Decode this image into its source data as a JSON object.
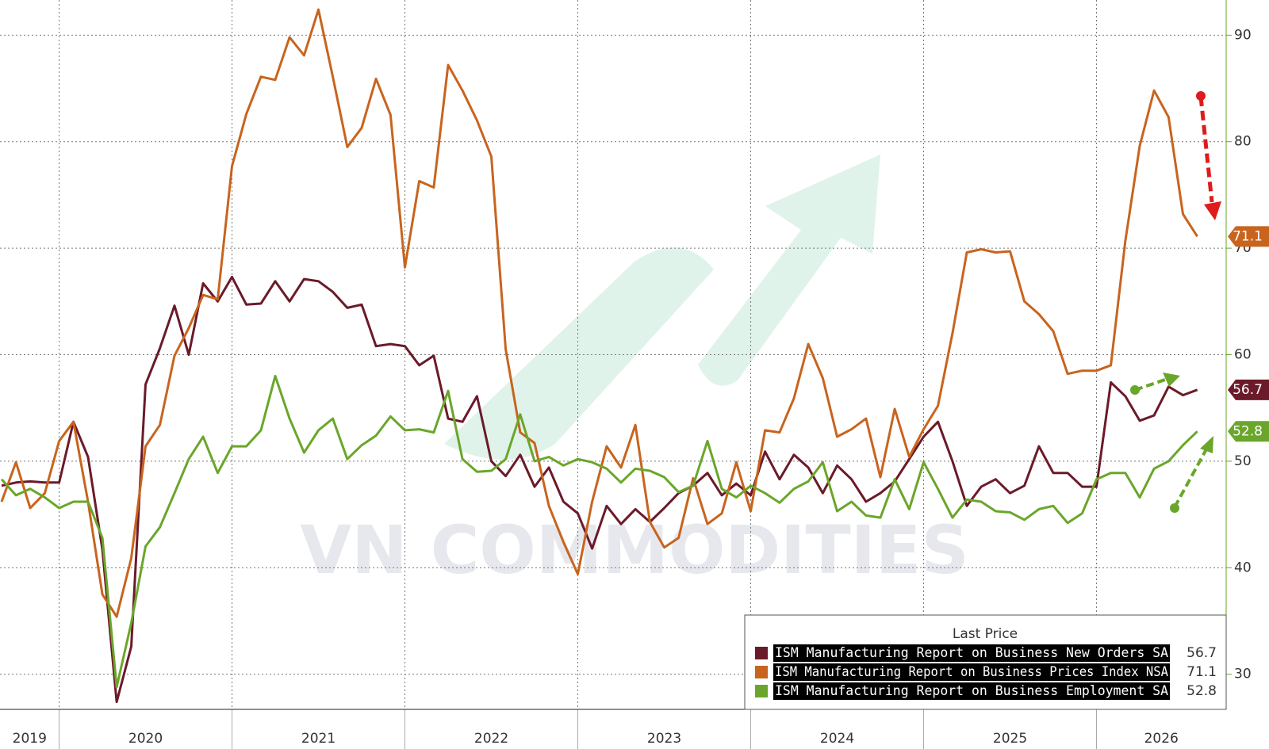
{
  "chart_data": {
    "type": "line",
    "watermark": "VN COMMODITIES",
    "legend_title": "Last Price",
    "x": [
      2019.667,
      2019.75,
      2019.833,
      2019.917,
      2020,
      2020.083,
      2020.167,
      2020.25,
      2020.333,
      2020.417,
      2020.5,
      2020.583,
      2020.667,
      2020.75,
      2020.833,
      2020.917,
      2021,
      2021.083,
      2021.167,
      2021.25,
      2021.333,
      2021.417,
      2021.5,
      2021.583,
      2021.667,
      2021.75,
      2021.833,
      2021.917,
      2022,
      2022.083,
      2022.167,
      2022.25,
      2022.333,
      2022.417,
      2022.5,
      2022.583,
      2022.667,
      2022.75,
      2022.833,
      2022.917,
      2023,
      2023.083,
      2023.167,
      2023.25,
      2023.333,
      2023.417,
      2023.5,
      2023.583,
      2023.667,
      2023.75,
      2023.833,
      2023.917,
      2024,
      2024.083,
      2024.167,
      2024.25,
      2024.333,
      2024.417,
      2024.5,
      2024.583,
      2024.667,
      2024.75,
      2024.833,
      2024.917,
      2025,
      2025.083,
      2025.167,
      2025.25,
      2025.333,
      2025.417,
      2025.5,
      2025.583,
      2025.667,
      2025.75,
      2025.833,
      2025.917,
      2026,
      2026.083,
      2026.167,
      2026.25,
      2026.333,
      2026.417,
      2026.5,
      2026.583
    ],
    "series": [
      {
        "name": "ISM Manufacturing Report on Business New Orders SA",
        "color": "#6b1a2a",
        "values": [
          47.7,
          48.0,
          48.1,
          48.0,
          48.0,
          53.7,
          50.4,
          41.7,
          27.4,
          32.6,
          57.2,
          60.6,
          64.6,
          60.0,
          66.7,
          65.0,
          67.3,
          64.7,
          64.8,
          66.9,
          65.0,
          67.1,
          66.9,
          65.9,
          64.4,
          64.7,
          60.8,
          61.0,
          60.8,
          59.0,
          59.9,
          54.0,
          53.7,
          56.1,
          50.0,
          48.6,
          50.6,
          47.6,
          49.4,
          46.2,
          45.1,
          41.8,
          45.8,
          44.1,
          45.5,
          44.3,
          45.6,
          47.0,
          47.7,
          48.9,
          46.8,
          47.9,
          46.8,
          50.9,
          48.3,
          50.6,
          49.4,
          47.0,
          49.6,
          48.3,
          46.2,
          47.0,
          48.1,
          50.2,
          52.3,
          53.7,
          50.0,
          45.8,
          47.6,
          48.3,
          47.0,
          47.7,
          51.4,
          48.9,
          48.9,
          47.6,
          47.6,
          57.4,
          56.1,
          53.8,
          54.3,
          57.0,
          56.2,
          56.7
        ]
      },
      {
        "name": "ISM Manufacturing Report on Business Prices Index NSA",
        "color": "#c8641e",
        "values": [
          46.2,
          49.9,
          45.6,
          47.0,
          51.9,
          53.7,
          46.2,
          37.5,
          35.4,
          40.9,
          51.4,
          53.4,
          59.9,
          62.5,
          65.6,
          65.2,
          77.7,
          82.6,
          86.1,
          85.8,
          89.8,
          88.1,
          92.4,
          86.1,
          79.5,
          81.3,
          85.9,
          82.5,
          68.2,
          76.3,
          75.7,
          87.2,
          84.8,
          82.0,
          78.6,
          60.5,
          52.7,
          51.7,
          45.8,
          42.4,
          39.4,
          46.2,
          51.4,
          49.4,
          53.4,
          44.3,
          41.9,
          42.8,
          48.4,
          44.1,
          45.1,
          49.9,
          45.3,
          52.9,
          52.7,
          55.9,
          61.0,
          57.8,
          52.3,
          53.0,
          54.0,
          48.5,
          54.9,
          50.4,
          53.0,
          55.2,
          62.0,
          69.6,
          69.9,
          69.6,
          69.7,
          65.0,
          63.8,
          62.2,
          58.2,
          58.5,
          58.5,
          59.0,
          70.7,
          79.6,
          84.8,
          82.3,
          73.2,
          71.1
        ]
      },
      {
        "name": "ISM Manufacturing Report on Business Employment SA",
        "color": "#6aa62a",
        "values": [
          48.3,
          46.8,
          47.4,
          46.6,
          45.6,
          46.2,
          46.2,
          42.8,
          28.8,
          34.8,
          42.0,
          43.8,
          47.0,
          50.2,
          52.3,
          48.9,
          51.4,
          51.4,
          52.9,
          58.0,
          54.0,
          50.8,
          52.9,
          54.0,
          50.2,
          51.5,
          52.4,
          54.2,
          52.9,
          53.0,
          52.7,
          56.6,
          50.2,
          49.0,
          49.1,
          50.2,
          54.4,
          50.0,
          50.4,
          49.6,
          50.2,
          49.9,
          49.3,
          48.0,
          49.3,
          49.1,
          48.5,
          47.1,
          47.7,
          51.9,
          47.4,
          46.6,
          47.7,
          47.0,
          46.1,
          47.4,
          48.1,
          49.9,
          45.3,
          46.2,
          44.9,
          44.7,
          48.3,
          45.5,
          49.9,
          47.4,
          44.7,
          46.4,
          46.2,
          45.3,
          45.2,
          44.5,
          45.5,
          45.8,
          44.2,
          45.1,
          48.3,
          48.9,
          48.9,
          46.6,
          49.3,
          50.0,
          51.5,
          52.8
        ]
      }
    ],
    "xlim": [
      2019.658,
      2026.75
    ],
    "xticks": [
      2020,
      2021,
      2022,
      2023,
      2024,
      2025,
      2026
    ],
    "year_labels": [
      "2019",
      "2020",
      "2021",
      "2022",
      "2023",
      "2024",
      "2025",
      "2026"
    ],
    "ylim": [
      26.7,
      93.3
    ],
    "yticks": [
      30,
      40,
      50,
      60,
      70,
      80,
      90
    ],
    "grid": true
  }
}
